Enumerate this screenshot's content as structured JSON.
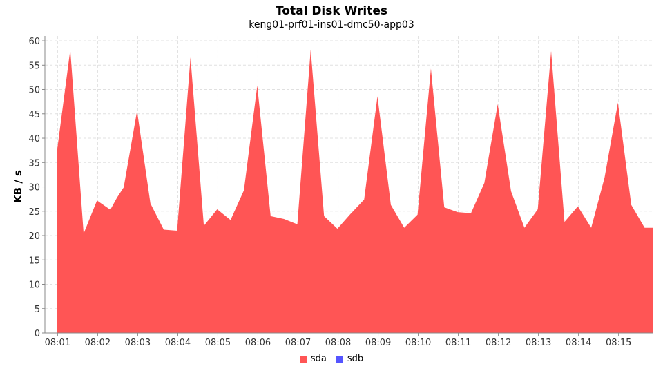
{
  "chart_data": {
    "type": "area",
    "title": "Total Disk Writes",
    "subtitle": "keng01-prf01-ins01-dmc50-app03",
    "ylabel": "KB / s",
    "xlabel": "",
    "ylim": [
      0,
      61
    ],
    "y_ticks": [
      0,
      5,
      10,
      15,
      20,
      25,
      30,
      35,
      40,
      45,
      50,
      55,
      60
    ],
    "x_ticks": [
      "08:01",
      "08:02",
      "08:03",
      "08:04",
      "08:05",
      "08:06",
      "08:07",
      "08:08",
      "08:09",
      "08:10",
      "08:11",
      "08:12",
      "08:13",
      "08:14",
      "08:15"
    ],
    "grid": true,
    "legend_position": "bottom",
    "series": [
      {
        "name": "sda",
        "color": "#ff5555",
        "x": [
          "08:00:59",
          "08:01:19",
          "08:01:39",
          "08:01:59",
          "08:02:19",
          "08:02:29",
          "08:02:39",
          "08:02:59",
          "08:03:19",
          "08:03:39",
          "08:03:59",
          "08:04:19",
          "08:04:39",
          "08:04:59",
          "08:05:19",
          "08:05:39",
          "08:05:59",
          "08:06:19",
          "08:06:39",
          "08:06:59",
          "08:07:19",
          "08:07:39",
          "08:07:59",
          "08:08:19",
          "08:08:39",
          "08:08:59",
          "08:09:19",
          "08:09:39",
          "08:09:59",
          "08:10:19",
          "08:10:39",
          "08:10:59",
          "08:11:19",
          "08:11:39",
          "08:11:59",
          "08:12:19",
          "08:12:39",
          "08:12:59",
          "08:13:19",
          "08:13:39",
          "08:13:59",
          "08:14:19",
          "08:14:39",
          "08:14:59",
          "08:15:19",
          "08:15:39",
          "08:15:51"
        ],
        "values": [
          37.2,
          58.2,
          20.4,
          27.2,
          25.3,
          27.8,
          29.9,
          45.6,
          26.6,
          21.2,
          21.0,
          56.6,
          22.0,
          25.4,
          23.2,
          29.3,
          50.8,
          24.0,
          23.4,
          22.3,
          58.2,
          24.0,
          21.4,
          24.5,
          27.4,
          48.6,
          26.3,
          21.6,
          24.3,
          54.3,
          25.8,
          24.8,
          24.6,
          30.8,
          47.0,
          29.1,
          21.6,
          25.4,
          57.9,
          22.8,
          26.0,
          21.6,
          31.9,
          47.3,
          26.3,
          21.6,
          21.6
        ]
      },
      {
        "name": "sdb",
        "color": "#5555ff",
        "x": [],
        "values": []
      }
    ]
  }
}
